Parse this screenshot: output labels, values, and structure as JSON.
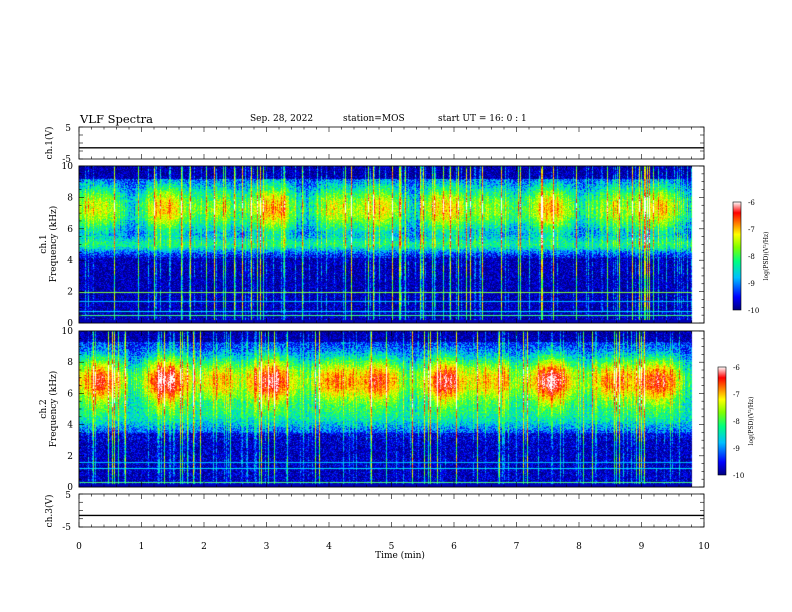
{
  "header": {
    "title": "VLF Spectra",
    "date": "Sep. 28, 2022",
    "station": "station=MOS",
    "start": "start  UT =   16: 0  : 1"
  },
  "chart_data": [
    {
      "type": "line",
      "panel": "ch1-voltage",
      "ylabel": "ch.1(V)",
      "ylim": [
        -5,
        5
      ],
      "yticks": [
        5,
        -5
      ],
      "x": [
        0,
        10
      ],
      "y": [
        -1.5,
        -1.5
      ],
      "xlim": [
        0,
        10
      ]
    },
    {
      "type": "heatmap",
      "panel": "ch1-spectrogram",
      "ylabel": "ch.1\nFrequency (kHz)",
      "ylim": [
        0,
        10
      ],
      "yticks": [
        0,
        2,
        4,
        6,
        8,
        10
      ],
      "xlim": [
        0,
        10
      ],
      "data_extent_x": [
        0,
        9.8
      ],
      "colorbar": {
        "label": "log(PSD)(V²/Hz)",
        "range": [
          -10,
          -6
        ],
        "ticks": [
          -6,
          -7,
          -8,
          -9,
          -10
        ]
      },
      "features": "strong emission 5.5-9 kHz with frequent broadband vertical spikes; weak band 4.5-5.5 kHz; horizontal interference lines near 0.5, 1.4, 2.0 kHz"
    },
    {
      "type": "heatmap",
      "panel": "ch2-spectrogram",
      "ylabel": "ch.2\nFrequency (kHz)",
      "ylim": [
        0,
        10
      ],
      "yticks": [
        0,
        2,
        4,
        6,
        8,
        10
      ],
      "xlim": [
        0,
        10
      ],
      "data_extent_x": [
        0,
        9.8
      ],
      "colorbar": {
        "label": "log(PSD)(V²/Hz)",
        "range": [
          -10,
          -6
        ],
        "ticks": [
          -6,
          -7,
          -8,
          -9,
          -10
        ]
      },
      "features": "intense emission centered ~6.8 kHz (red) spanning 5-8.5 kHz; vertical spikes; horizontal lines near 1.2, 1.6 kHz"
    },
    {
      "type": "line",
      "panel": "ch3-voltage",
      "ylabel": "ch.3(V)",
      "ylim": [
        -5,
        5
      ],
      "yticks": [
        5,
        -5
      ],
      "x": [
        0,
        10
      ],
      "y": [
        -1.5,
        -1.5
      ],
      "xlim": [
        0,
        10
      ]
    }
  ],
  "xaxis": {
    "label": "Time  (min)",
    "ticks": [
      "0",
      "1",
      "2",
      "3",
      "4",
      "5",
      "6",
      "7",
      "8",
      "9",
      "10"
    ]
  },
  "colors": {
    "colormap": [
      "#000080",
      "#0000ff",
      "#00c0ff",
      "#00ff80",
      "#80ff00",
      "#ffff00",
      "#ff8000",
      "#ff0000",
      "#ffffff"
    ]
  }
}
